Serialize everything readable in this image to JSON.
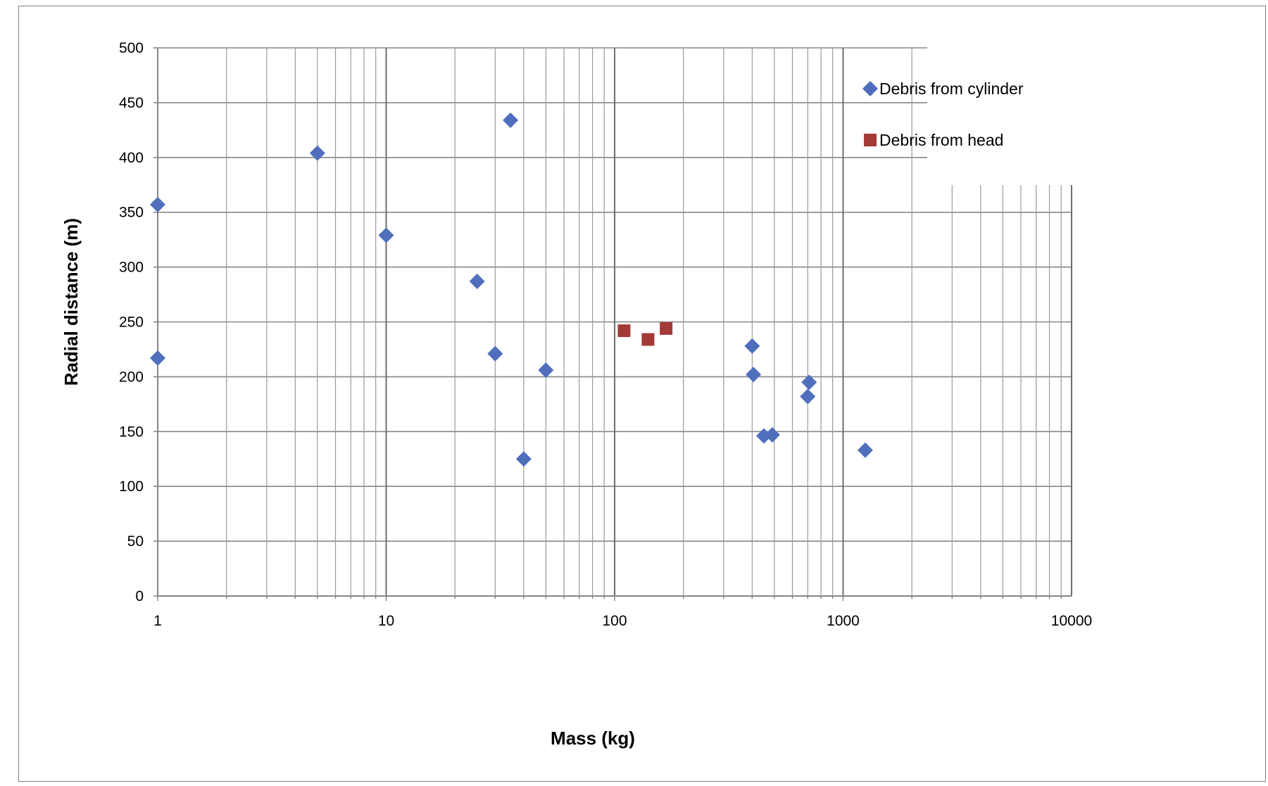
{
  "chart_data": {
    "type": "scatter",
    "title": "",
    "xlabel": "Mass (kg)",
    "ylabel": "Radial distance (m)",
    "x_scale": "log",
    "xlim": [
      1,
      10000
    ],
    "ylim": [
      0,
      500
    ],
    "x_ticks": [
      "1",
      "10",
      "100",
      "1000",
      "10000"
    ],
    "y_ticks": [
      "0",
      "50",
      "100",
      "150",
      "200",
      "250",
      "300",
      "350",
      "400",
      "450",
      "500"
    ],
    "grid": true,
    "legend_position": "top-right",
    "series": [
      {
        "name": "Debris from cylinder",
        "marker": "diamond",
        "color": "#4f6fbd",
        "points": [
          {
            "x": 1,
            "y": 357
          },
          {
            "x": 1,
            "y": 217
          },
          {
            "x": 5,
            "y": 404
          },
          {
            "x": 10,
            "y": 329
          },
          {
            "x": 25,
            "y": 287
          },
          {
            "x": 30,
            "y": 221
          },
          {
            "x": 35,
            "y": 434
          },
          {
            "x": 40,
            "y": 125
          },
          {
            "x": 50,
            "y": 206
          },
          {
            "x": 400,
            "y": 228
          },
          {
            "x": 405,
            "y": 202
          },
          {
            "x": 450,
            "y": 146
          },
          {
            "x": 490,
            "y": 147
          },
          {
            "x": 700,
            "y": 182
          },
          {
            "x": 710,
            "y": 195
          },
          {
            "x": 1250,
            "y": 133
          }
        ]
      },
      {
        "name": "Debris from head",
        "marker": "square",
        "color": "#a33a37",
        "points": [
          {
            "x": 110,
            "y": 242
          },
          {
            "x": 140,
            "y": 234
          },
          {
            "x": 168,
            "y": 244
          }
        ]
      }
    ]
  }
}
